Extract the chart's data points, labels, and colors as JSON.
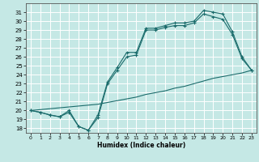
{
  "xlabel": "Humidex (Indice chaleur)",
  "xlim": [
    -0.5,
    23.5
  ],
  "ylim": [
    17.5,
    32.0
  ],
  "yticks": [
    18,
    19,
    20,
    21,
    22,
    23,
    24,
    25,
    26,
    27,
    28,
    29,
    30,
    31
  ],
  "xticks": [
    0,
    1,
    2,
    3,
    4,
    5,
    6,
    7,
    8,
    9,
    10,
    11,
    12,
    13,
    14,
    15,
    16,
    17,
    18,
    19,
    20,
    21,
    22,
    23
  ],
  "bg_color": "#c5e8e5",
  "line_color": "#1a6b6b",
  "grid_color": "#ffffff",
  "line1_x": [
    0,
    1,
    2,
    3,
    4,
    5,
    6,
    7,
    8,
    9,
    10,
    11,
    12,
    13,
    14,
    15,
    16,
    17,
    18,
    19,
    20,
    21,
    22,
    23
  ],
  "line1_y": [
    20.0,
    19.8,
    19.5,
    19.3,
    19.8,
    18.2,
    17.8,
    19.5,
    23.2,
    24.8,
    26.5,
    26.5,
    29.2,
    29.2,
    29.5,
    29.8,
    29.8,
    30.0,
    31.2,
    31.0,
    30.8,
    28.8,
    26.0,
    24.5
  ],
  "line2_x": [
    0,
    1,
    2,
    3,
    4,
    5,
    6,
    7,
    8,
    9,
    10,
    11,
    12,
    13,
    14,
    15,
    16,
    17,
    18,
    19,
    20,
    21,
    22,
    23
  ],
  "line2_y": [
    20.0,
    19.8,
    19.5,
    19.3,
    20.0,
    18.2,
    17.8,
    19.2,
    23.0,
    24.5,
    26.0,
    26.2,
    29.0,
    29.0,
    29.3,
    29.5,
    29.5,
    29.8,
    30.8,
    30.5,
    30.2,
    28.5,
    25.8,
    24.5
  ],
  "line3_x": [
    0,
    1,
    2,
    3,
    4,
    5,
    6,
    7,
    8,
    9,
    10,
    11,
    12,
    13,
    14,
    15,
    16,
    17,
    18,
    19,
    20,
    21,
    22,
    23
  ],
  "line3_y": [
    20.0,
    20.1,
    20.2,
    20.3,
    20.4,
    20.5,
    20.6,
    20.7,
    20.9,
    21.1,
    21.3,
    21.5,
    21.8,
    22.0,
    22.2,
    22.5,
    22.7,
    23.0,
    23.3,
    23.6,
    23.8,
    24.0,
    24.2,
    24.5
  ]
}
